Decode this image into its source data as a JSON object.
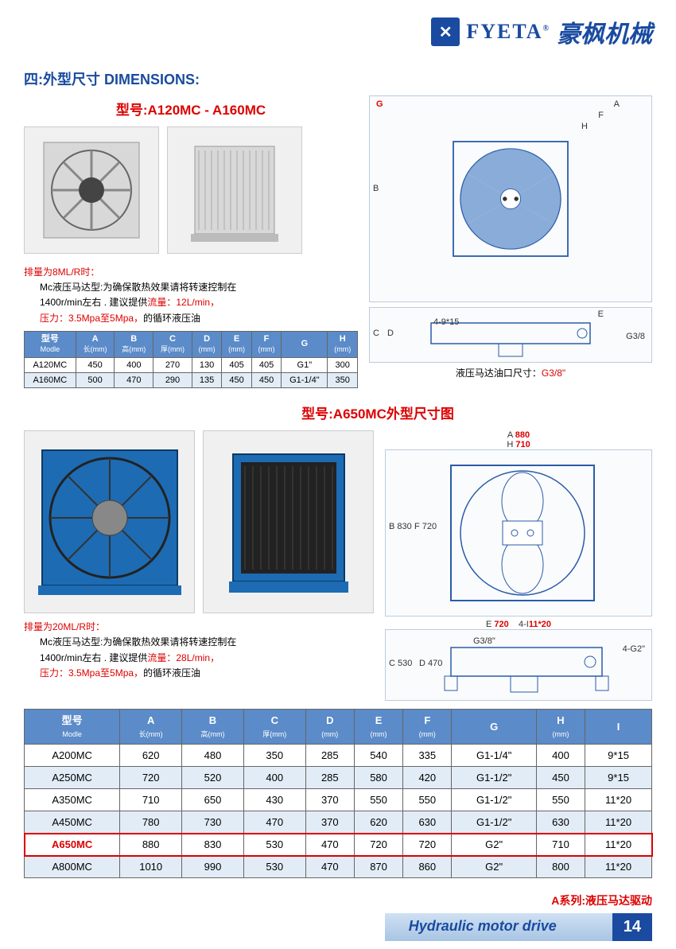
{
  "header": {
    "brand_en": "FYETA",
    "brand_cn": "豪枫机械",
    "reg": "®"
  },
  "sec1": {
    "title": "四:外型尺寸 DIMENSIONS:",
    "model": "型号:A120MC  -  A160MC",
    "note_red": "排量为8ML/R时：",
    "note_l1": "Mc液压马达型:为确保散热效果请将转速控制在",
    "note_l2a": "1400r/min左右 .     建议提供",
    "note_l2b": "流量：12L/min，",
    "note_l3a": "压力：3.5Mpa至5Mpa，",
    "note_l3b": "的循环液压油",
    "port_caption": "液压马达油口尺寸：",
    "port_val": "G3/8\"",
    "dims": {
      "G": "G",
      "A": "A",
      "F": "F",
      "H": "H",
      "B": "B",
      "E": "E",
      "C": "C",
      "D": "D",
      "slot": "4-9*15",
      "thread": "G3/8"
    },
    "table": {
      "headers": [
        [
          "型号",
          "Modle"
        ],
        [
          "A",
          "长(mm)"
        ],
        [
          "B",
          "高(mm)"
        ],
        [
          "C",
          "厚(mm)"
        ],
        [
          "D",
          "(mm)"
        ],
        [
          "E",
          "(mm)"
        ],
        [
          "F",
          "(mm)"
        ],
        [
          "G",
          ""
        ],
        [
          "H",
          "(mm)"
        ]
      ],
      "rows": [
        [
          "A120MC",
          "450",
          "400",
          "270",
          "130",
          "405",
          "405",
          "G1\"",
          "300"
        ],
        [
          "A160MC",
          "500",
          "470",
          "290",
          "135",
          "450",
          "450",
          "G1-1/4\"",
          "350"
        ]
      ]
    }
  },
  "sec2": {
    "model": "型号:A650MC外型尺寸图",
    "note_red": "排量为20ML/R时：",
    "note_l1": "Mc液压马达型:为确保散热效果请将转速控制在",
    "note_l2a": "1400r/min左右 .     建议提供",
    "note_l2b": "流量：28L/min，",
    "note_l3a": "压力：3.5Mpa至5Mpa，",
    "note_l3b": "的循环液压油",
    "dims": {
      "A": "A",
      "Aval": "880",
      "H": "H",
      "Hval": "710",
      "B": "B",
      "Bval": "830",
      "F": "F",
      "Fval": "720",
      "E": "E",
      "Eval": "720",
      "slot": "4-I",
      "slotval": "11*20",
      "thread": "G3/8\"",
      "g2": "4-G",
      "g2val": "2\"",
      "C": "C",
      "Cval": "530",
      "D": "D",
      "Dval": "470"
    },
    "table": {
      "headers": [
        [
          "型号",
          "Modle"
        ],
        [
          "A",
          "长(mm)"
        ],
        [
          "B",
          "高(mm)"
        ],
        [
          "C",
          "厚(mm)"
        ],
        [
          "D",
          "(mm)"
        ],
        [
          "E",
          "(mm)"
        ],
        [
          "F",
          "(mm)"
        ],
        [
          "G",
          ""
        ],
        [
          "H",
          "(mm)"
        ],
        [
          "I",
          ""
        ]
      ],
      "rows": [
        [
          "A200MC",
          "620",
          "480",
          "350",
          "285",
          "540",
          "335",
          "G1-1/4\"",
          "400",
          "9*15"
        ],
        [
          "A250MC",
          "720",
          "520",
          "400",
          "285",
          "580",
          "420",
          "G1-1/2\"",
          "450",
          "9*15"
        ],
        [
          "A350MC",
          "710",
          "650",
          "430",
          "370",
          "550",
          "550",
          "G1-1/2\"",
          "550",
          "11*20"
        ],
        [
          "A450MC",
          "780",
          "730",
          "470",
          "370",
          "620",
          "630",
          "G1-1/2\"",
          "630",
          "11*20"
        ],
        [
          "A650MC",
          "880",
          "830",
          "530",
          "470",
          "720",
          "720",
          "G2\"",
          "710",
          "11*20"
        ],
        [
          "A800MC",
          "1010",
          "990",
          "530",
          "470",
          "870",
          "860",
          "G2\"",
          "800",
          "11*20"
        ]
      ],
      "highlight": 4
    }
  },
  "footer": {
    "series": "A系列:液压马达驱动",
    "drive": "Hydraulic motor drive",
    "page": "14"
  }
}
